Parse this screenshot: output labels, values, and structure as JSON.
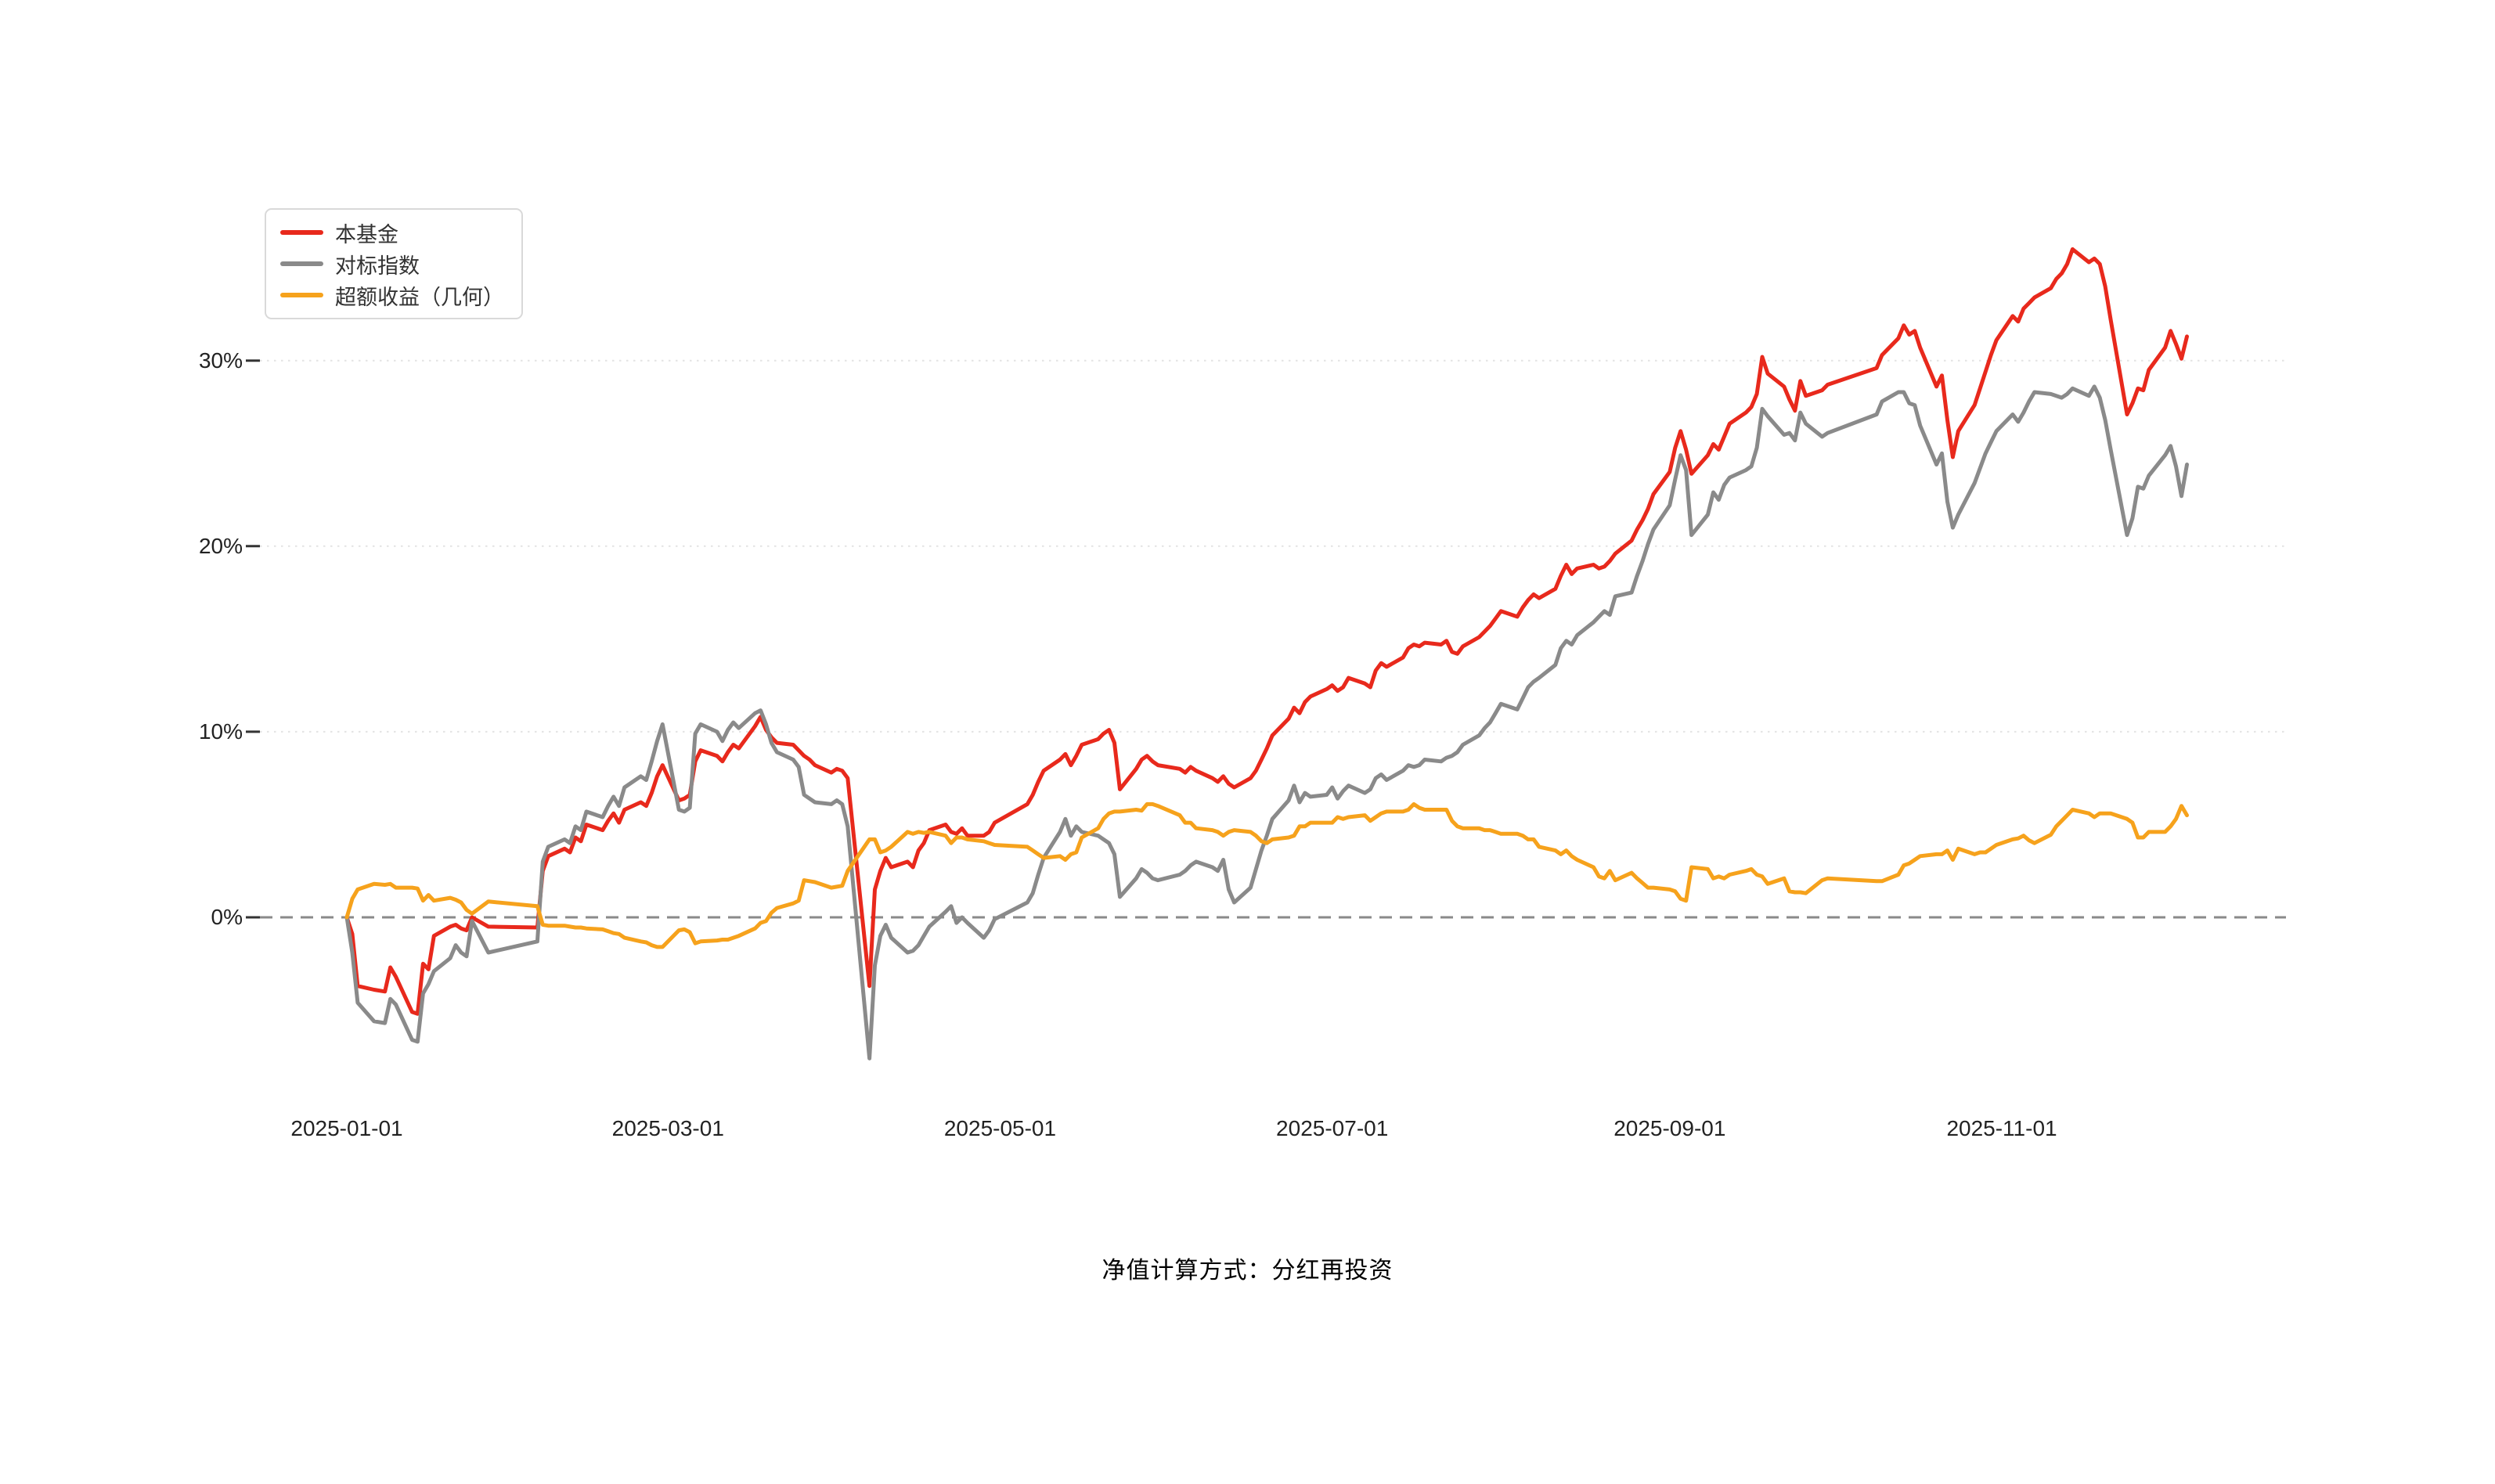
{
  "footer": {
    "text": "净值计算方式：分红再投资"
  },
  "chart_data": {
    "type": "line",
    "title": "",
    "xlabel": "",
    "ylabel": "",
    "grid": "horizontal dotted gridlines at 10/20/30, dashed line at 0",
    "legend_position": "top-left",
    "ylim": [
      -8,
      37
    ],
    "yticks": [
      0,
      10,
      20,
      30
    ],
    "ytick_labels": [
      "0%",
      "10%",
      "20%",
      "30%"
    ],
    "xtick_labels": [
      "2025-01-01",
      "2025-03-01",
      "2025-05-01",
      "2025-07-01",
      "2025-09-01",
      "2025-11-01"
    ],
    "x_start_date": "2025-01-01",
    "x_end_date": "2025-12-05",
    "series": [
      {
        "name": "本基金",
        "color": "#e8291c"
      },
      {
        "name": "对标指数",
        "color": "#8a8a8a"
      },
      {
        "name": "超额收益（几何）",
        "color": "#f6a21c"
      }
    ],
    "columns": [
      "date",
      "本基金",
      "对标指数",
      "超额收益（几何）"
    ],
    "points": [
      [
        "2025-01-01",
        0,
        0,
        0
      ],
      [
        "2025-01-02",
        -0.9,
        -1.9,
        1.0
      ],
      [
        "2025-01-03",
        -3.7,
        -4.6,
        1.5
      ],
      [
        "2025-01-06",
        -3.9,
        -5.6,
        1.8
      ],
      [
        "2025-01-08",
        -4.0,
        -5.7,
        1.75
      ],
      [
        "2025-01-09",
        -2.7,
        -4.4,
        1.8
      ],
      [
        "2025-01-10",
        -3.2,
        -4.7,
        1.6
      ],
      [
        "2025-01-13",
        -5.1,
        -6.6,
        1.6
      ],
      [
        "2025-01-14",
        -5.2,
        -6.7,
        1.55
      ],
      [
        "2025-01-15",
        -2.5,
        -4.1,
        0.9
      ],
      [
        "2025-01-16",
        -2.8,
        -3.6,
        1.2
      ],
      [
        "2025-01-17",
        -1.0,
        -2.9,
        0.9
      ],
      [
        "2025-01-20",
        -0.5,
        -2.2,
        1.05
      ],
      [
        "2025-01-21",
        -0.4,
        -1.5,
        0.95
      ],
      [
        "2025-01-22",
        -0.6,
        -1.9,
        0.8
      ],
      [
        "2025-01-23",
        -0.7,
        -2.1,
        0.4
      ],
      [
        "2025-01-24",
        0.0,
        -0.2,
        0.2
      ],
      [
        "2025-01-27",
        -0.5,
        -1.9,
        0.85
      ],
      [
        "2025-02-05",
        -0.55,
        -1.3,
        0.6
      ],
      [
        "2025-02-06",
        2.5,
        3.0,
        -0.4
      ],
      [
        "2025-02-07",
        3.3,
        3.8,
        -0.45
      ],
      [
        "2025-02-10",
        3.7,
        4.2,
        -0.45
      ],
      [
        "2025-02-11",
        3.5,
        4.0,
        -0.5
      ],
      [
        "2025-02-12",
        4.3,
        4.9,
        -0.55
      ],
      [
        "2025-02-13",
        4.1,
        4.7,
        -0.55
      ],
      [
        "2025-02-14",
        5.0,
        5.7,
        -0.6
      ],
      [
        "2025-02-17",
        4.7,
        5.4,
        -0.65
      ],
      [
        "2025-02-18",
        5.2,
        6.0,
        -0.75
      ],
      [
        "2025-02-19",
        5.6,
        6.5,
        -0.85
      ],
      [
        "2025-02-20",
        5.1,
        6.0,
        -0.9
      ],
      [
        "2025-02-21",
        5.8,
        7.0,
        -1.1
      ],
      [
        "2025-02-24",
        6.2,
        7.6,
        -1.3
      ],
      [
        "2025-02-25",
        6.0,
        7.4,
        -1.35
      ],
      [
        "2025-02-26",
        6.7,
        8.4,
        -1.5
      ],
      [
        "2025-02-27",
        7.6,
        9.5,
        -1.6
      ],
      [
        "2025-02-28",
        8.2,
        10.4,
        -1.6
      ],
      [
        "2025-03-03",
        6.3,
        5.8,
        -0.7
      ],
      [
        "2025-03-04",
        6.4,
        5.7,
        -0.65
      ],
      [
        "2025-03-05",
        6.6,
        5.9,
        -0.8
      ],
      [
        "2025-03-06",
        8.4,
        9.9,
        -1.4
      ],
      [
        "2025-03-07",
        9.0,
        10.4,
        -1.3
      ],
      [
        "2025-03-10",
        8.7,
        10.0,
        -1.25
      ],
      [
        "2025-03-11",
        8.4,
        9.5,
        -1.2
      ],
      [
        "2025-03-12",
        8.9,
        10.1,
        -1.2
      ],
      [
        "2025-03-13",
        9.3,
        10.5,
        -1.1
      ],
      [
        "2025-03-14",
        9.1,
        10.2,
        -1.0
      ],
      [
        "2025-03-17",
        10.3,
        11.0,
        -0.6
      ],
      [
        "2025-03-18",
        10.8,
        11.15,
        -0.3
      ],
      [
        "2025-03-19",
        10.1,
        10.4,
        -0.2
      ],
      [
        "2025-03-20",
        9.7,
        9.4,
        0.25
      ],
      [
        "2025-03-21",
        9.4,
        8.9,
        0.5
      ],
      [
        "2025-03-24",
        9.3,
        8.5,
        0.75
      ],
      [
        "2025-03-25",
        9.0,
        8.1,
        0.9
      ],
      [
        "2025-03-26",
        8.7,
        6.6,
        2.0
      ],
      [
        "2025-03-27",
        8.5,
        6.4,
        1.95
      ],
      [
        "2025-03-28",
        8.2,
        6.2,
        1.9
      ],
      [
        "2025-03-31",
        7.8,
        6.1,
        1.6
      ],
      [
        "2025-04-01",
        8.0,
        6.3,
        1.65
      ],
      [
        "2025-04-02",
        7.9,
        6.1,
        1.7
      ],
      [
        "2025-04-03",
        7.5,
        4.9,
        2.5
      ],
      [
        "2025-04-07",
        -3.7,
        -7.6,
        4.2
      ],
      [
        "2025-04-08",
        1.5,
        -2.6,
        4.2
      ],
      [
        "2025-04-09",
        2.5,
        -1.0,
        3.5
      ],
      [
        "2025-04-10",
        3.2,
        -0.4,
        3.6
      ],
      [
        "2025-04-11",
        2.7,
        -1.1,
        3.8
      ],
      [
        "2025-04-14",
        3.0,
        -1.9,
        4.6
      ],
      [
        "2025-04-15",
        2.7,
        -1.8,
        4.5
      ],
      [
        "2025-04-16",
        3.6,
        -1.5,
        4.6
      ],
      [
        "2025-04-17",
        4.0,
        -1.0,
        4.55
      ],
      [
        "2025-04-18",
        4.7,
        -0.5,
        4.6
      ],
      [
        "2025-04-21",
        5.0,
        0.3,
        4.4
      ],
      [
        "2025-04-22",
        4.6,
        0.6,
        4.0
      ],
      [
        "2025-04-23",
        4.5,
        -0.3,
        4.3
      ],
      [
        "2025-04-24",
        4.8,
        0.0,
        4.3
      ],
      [
        "2025-04-25",
        4.4,
        -0.3,
        4.2
      ],
      [
        "2025-04-28",
        4.4,
        -1.1,
        4.1
      ],
      [
        "2025-04-29",
        4.6,
        -0.7,
        4.0
      ],
      [
        "2025-04-30",
        5.1,
        -0.1,
        3.9
      ],
      [
        "2025-05-06",
        6.1,
        0.8,
        3.8
      ],
      [
        "2025-05-07",
        6.6,
        1.3,
        3.6
      ],
      [
        "2025-05-08",
        7.3,
        2.3,
        3.4
      ],
      [
        "2025-05-09",
        7.9,
        3.2,
        3.2
      ],
      [
        "2025-05-12",
        8.5,
        4.6,
        3.3
      ],
      [
        "2025-05-13",
        8.8,
        5.3,
        3.1
      ],
      [
        "2025-05-14",
        8.2,
        4.4,
        3.4
      ],
      [
        "2025-05-15",
        8.7,
        4.9,
        3.5
      ],
      [
        "2025-05-16",
        9.3,
        4.6,
        4.3
      ],
      [
        "2025-05-19",
        9.6,
        4.4,
        4.8
      ],
      [
        "2025-05-20",
        9.9,
        4.2,
        5.3
      ],
      [
        "2025-05-21",
        10.1,
        4.0,
        5.6
      ],
      [
        "2025-05-22",
        9.4,
        3.4,
        5.7
      ],
      [
        "2025-05-23",
        6.9,
        1.1,
        5.7
      ],
      [
        "2025-05-26",
        8.0,
        2.1,
        5.8
      ],
      [
        "2025-05-27",
        8.5,
        2.6,
        5.75
      ],
      [
        "2025-05-28",
        8.7,
        2.4,
        6.1
      ],
      [
        "2025-05-29",
        8.4,
        2.1,
        6.1
      ],
      [
        "2025-05-30",
        8.2,
        2.0,
        6.0
      ],
      [
        "2025-06-03",
        8.0,
        2.3,
        5.5
      ],
      [
        "2025-06-04",
        7.8,
        2.5,
        5.1
      ],
      [
        "2025-06-05",
        8.1,
        2.8,
        5.1
      ],
      [
        "2025-06-06",
        7.9,
        3.0,
        4.8
      ],
      [
        "2025-06-09",
        7.5,
        2.7,
        4.7
      ],
      [
        "2025-06-10",
        7.3,
        2.5,
        4.6
      ],
      [
        "2025-06-11",
        7.6,
        3.1,
        4.4
      ],
      [
        "2025-06-12",
        7.2,
        1.5,
        4.6
      ],
      [
        "2025-06-13",
        7.0,
        0.8,
        4.7
      ],
      [
        "2025-06-16",
        7.5,
        1.6,
        4.6
      ],
      [
        "2025-06-17",
        7.9,
        2.6,
        4.4
      ],
      [
        "2025-06-18",
        8.5,
        3.6,
        4.1
      ],
      [
        "2025-06-19",
        9.1,
        4.4,
        4.0
      ],
      [
        "2025-06-20",
        9.8,
        5.3,
        4.2
      ],
      [
        "2025-06-23",
        10.7,
        6.3,
        4.3
      ],
      [
        "2025-06-24",
        11.3,
        7.1,
        4.4
      ],
      [
        "2025-06-25",
        11.0,
        6.2,
        4.9
      ],
      [
        "2025-06-26",
        11.6,
        6.7,
        4.9
      ],
      [
        "2025-06-27",
        11.9,
        6.5,
        5.1
      ],
      [
        "2025-06-30",
        12.3,
        6.6,
        5.1
      ],
      [
        "2025-07-01",
        12.5,
        7.0,
        5.1
      ],
      [
        "2025-07-02",
        12.2,
        6.4,
        5.4
      ],
      [
        "2025-07-03",
        12.4,
        6.8,
        5.3
      ],
      [
        "2025-07-04",
        12.9,
        7.1,
        5.4
      ],
      [
        "2025-07-07",
        12.6,
        6.7,
        5.5
      ],
      [
        "2025-07-08",
        12.4,
        6.9,
        5.2
      ],
      [
        "2025-07-09",
        13.3,
        7.5,
        5.4
      ],
      [
        "2025-07-10",
        13.7,
        7.7,
        5.6
      ],
      [
        "2025-07-11",
        13.5,
        7.4,
        5.7
      ],
      [
        "2025-07-14",
        14.0,
        7.9,
        5.7
      ],
      [
        "2025-07-15",
        14.5,
        8.2,
        5.8
      ],
      [
        "2025-07-16",
        14.7,
        8.1,
        6.1
      ],
      [
        "2025-07-17",
        14.6,
        8.2,
        5.9
      ],
      [
        "2025-07-18",
        14.8,
        8.5,
        5.8
      ],
      [
        "2025-07-21",
        14.7,
        8.4,
        5.8
      ],
      [
        "2025-07-22",
        14.9,
        8.6,
        5.8
      ],
      [
        "2025-07-23",
        14.3,
        8.7,
        5.2
      ],
      [
        "2025-07-24",
        14.2,
        8.9,
        4.9
      ],
      [
        "2025-07-25",
        14.6,
        9.3,
        4.8
      ],
      [
        "2025-07-28",
        15.1,
        9.8,
        4.8
      ],
      [
        "2025-07-29",
        15.4,
        10.2,
        4.7
      ],
      [
        "2025-07-30",
        15.7,
        10.5,
        4.7
      ],
      [
        "2025-07-31",
        16.1,
        11.0,
        4.6
      ],
      [
        "2025-08-01",
        16.5,
        11.5,
        4.5
      ],
      [
        "2025-08-04",
        16.2,
        11.2,
        4.5
      ],
      [
        "2025-08-05",
        16.7,
        11.8,
        4.4
      ],
      [
        "2025-08-06",
        17.1,
        12.4,
        4.2
      ],
      [
        "2025-08-07",
        17.4,
        12.7,
        4.2
      ],
      [
        "2025-08-08",
        17.2,
        12.9,
        3.8
      ],
      [
        "2025-08-11",
        17.7,
        13.6,
        3.6
      ],
      [
        "2025-08-12",
        18.4,
        14.5,
        3.4
      ],
      [
        "2025-08-13",
        19.0,
        14.9,
        3.6
      ],
      [
        "2025-08-14",
        18.5,
        14.7,
        3.3
      ],
      [
        "2025-08-15",
        18.8,
        15.2,
        3.1
      ],
      [
        "2025-08-18",
        19.0,
        15.9,
        2.7
      ],
      [
        "2025-08-19",
        18.8,
        16.2,
        2.2
      ],
      [
        "2025-08-20",
        18.9,
        16.5,
        2.1
      ],
      [
        "2025-08-21",
        19.2,
        16.3,
        2.5
      ],
      [
        "2025-08-22",
        19.6,
        17.3,
        2.0
      ],
      [
        "2025-08-25",
        20.3,
        17.5,
        2.4
      ],
      [
        "2025-08-26",
        20.9,
        18.4,
        2.1
      ],
      [
        "2025-08-27",
        21.4,
        19.2,
        1.85
      ],
      [
        "2025-08-28",
        22.0,
        20.1,
        1.6
      ],
      [
        "2025-08-29",
        22.8,
        20.9,
        1.6
      ],
      [
        "2025-09-01",
        24.0,
        22.2,
        1.5
      ],
      [
        "2025-09-02",
        25.3,
        23.6,
        1.4
      ],
      [
        "2025-09-03",
        26.2,
        24.9,
        1.0
      ],
      [
        "2025-09-04",
        25.2,
        24.1,
        0.9
      ],
      [
        "2025-09-05",
        23.9,
        20.6,
        2.7
      ],
      [
        "2025-09-08",
        24.9,
        21.7,
        2.6
      ],
      [
        "2025-09-09",
        25.5,
        22.9,
        2.1
      ],
      [
        "2025-09-10",
        25.2,
        22.5,
        2.2
      ],
      [
        "2025-09-11",
        25.9,
        23.3,
        2.1
      ],
      [
        "2025-09-12",
        26.6,
        23.7,
        2.3
      ],
      [
        "2025-09-15",
        27.2,
        24.1,
        2.5
      ],
      [
        "2025-09-16",
        27.5,
        24.3,
        2.6
      ],
      [
        "2025-09-17",
        28.2,
        25.3,
        2.3
      ],
      [
        "2025-09-18",
        30.2,
        27.4,
        2.2
      ],
      [
        "2025-09-19",
        29.3,
        27.0,
        1.8
      ],
      [
        "2025-09-22",
        28.6,
        26.0,
        2.1
      ],
      [
        "2025-09-23",
        27.9,
        26.1,
        1.4
      ],
      [
        "2025-09-24",
        27.3,
        25.7,
        1.35
      ],
      [
        "2025-09-25",
        28.9,
        27.2,
        1.35
      ],
      [
        "2025-09-26",
        28.1,
        26.6,
        1.3
      ],
      [
        "2025-09-29",
        28.4,
        25.9,
        2.0
      ],
      [
        "2025-09-30",
        28.7,
        26.1,
        2.1
      ],
      [
        "2025-10-09",
        29.6,
        27.1,
        1.95
      ],
      [
        "2025-10-10",
        30.3,
        27.8,
        1.95
      ],
      [
        "2025-10-13",
        31.2,
        28.3,
        2.3
      ],
      [
        "2025-10-14",
        31.9,
        28.3,
        2.8
      ],
      [
        "2025-10-15",
        31.4,
        27.7,
        2.9
      ],
      [
        "2025-10-16",
        31.6,
        27.6,
        3.1
      ],
      [
        "2025-10-17",
        30.7,
        26.5,
        3.3
      ],
      [
        "2025-10-20",
        28.6,
        24.4,
        3.4
      ],
      [
        "2025-10-21",
        29.2,
        25.0,
        3.4
      ],
      [
        "2025-10-22",
        26.8,
        22.4,
        3.6
      ],
      [
        "2025-10-23",
        24.8,
        21.0,
        3.1
      ],
      [
        "2025-10-24",
        26.2,
        21.7,
        3.7
      ],
      [
        "2025-10-27",
        27.6,
        23.4,
        3.4
      ],
      [
        "2025-10-28",
        28.5,
        24.2,
        3.5
      ],
      [
        "2025-10-29",
        29.4,
        25.0,
        3.5
      ],
      [
        "2025-10-30",
        30.3,
        25.6,
        3.7
      ],
      [
        "2025-10-31",
        31.1,
        26.2,
        3.9
      ],
      [
        "2025-11-03",
        32.4,
        27.1,
        4.2
      ],
      [
        "2025-11-04",
        32.1,
        26.7,
        4.25
      ],
      [
        "2025-11-05",
        32.8,
        27.2,
        4.4
      ],
      [
        "2025-11-06",
        33.1,
        27.8,
        4.15
      ],
      [
        "2025-11-07",
        33.4,
        28.3,
        4.0
      ],
      [
        "2025-11-10",
        33.9,
        28.2,
        4.45
      ],
      [
        "2025-11-11",
        34.4,
        28.1,
        4.9
      ],
      [
        "2025-11-12",
        34.7,
        28.0,
        5.2
      ],
      [
        "2025-11-13",
        35.2,
        28.2,
        5.5
      ],
      [
        "2025-11-14",
        36.0,
        28.5,
        5.8
      ],
      [
        "2025-11-17",
        35.3,
        28.1,
        5.6
      ],
      [
        "2025-11-18",
        35.5,
        28.6,
        5.4
      ],
      [
        "2025-11-19",
        35.2,
        28.0,
        5.6
      ],
      [
        "2025-11-20",
        34.0,
        26.8,
        5.6
      ],
      [
        "2025-11-21",
        32.2,
        25.2,
        5.6
      ],
      [
        "2025-11-24",
        27.1,
        20.6,
        5.3
      ],
      [
        "2025-11-25",
        27.7,
        21.5,
        5.1
      ],
      [
        "2025-11-26",
        28.5,
        23.2,
        4.3
      ],
      [
        "2025-11-27",
        28.4,
        23.1,
        4.3
      ],
      [
        "2025-11-28",
        29.5,
        23.8,
        4.6
      ],
      [
        "2025-12-01",
        30.7,
        24.9,
        4.6
      ],
      [
        "2025-12-02",
        31.6,
        25.4,
        4.9
      ],
      [
        "2025-12-03",
        30.9,
        24.3,
        5.3
      ],
      [
        "2025-12-04",
        30.1,
        22.7,
        6.0
      ],
      [
        "2025-12-05",
        31.3,
        24.4,
        5.5
      ]
    ]
  }
}
